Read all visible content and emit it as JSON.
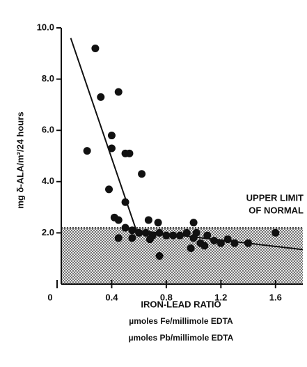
{
  "chart_data": {
    "type": "scatter",
    "y_label": "mg δ-ALA/m²/24 hours",
    "x_label": [
      "IRON-LEAD RATIO",
      "µmoles Fe/millimole EDTA",
      "µmoles Pb/millimole EDTA"
    ],
    "annotation": [
      "UPPER LIMIT",
      "OF NORMAL"
    ],
    "normal_limit": 2.2,
    "color": "#111111",
    "xlim": [
      0,
      1.8
    ],
    "ylim": [
      0,
      10
    ],
    "xticks": [
      0,
      0.4,
      0.8,
      1.2,
      1.6
    ],
    "yticks": [
      {
        "value": 2,
        "label": "2.0"
      },
      {
        "value": 4,
        "label": "4.0"
      },
      {
        "value": 6,
        "label": "6.0"
      },
      {
        "value": 8,
        "label": "8.0"
      },
      {
        "value": 10,
        "label": "10.0"
      }
    ],
    "trend": {
      "x": [
        0.1,
        0.58,
        1.8
      ],
      "y": [
        9.6,
        2.1,
        1.35
      ]
    },
    "x": [
      0.28,
      0.32,
      0.45,
      0.22,
      0.4,
      0.4,
      0.5,
      0.53,
      0.62,
      0.38,
      0.5,
      0.42,
      0.45,
      0.5,
      0.55,
      0.67,
      0.74,
      0.6,
      0.65,
      0.7,
      0.75,
      0.8,
      0.85,
      0.9,
      0.95,
      1.0,
      1.0,
      1.05,
      1.02,
      1.1,
      1.15,
      1.2,
      0.45,
      0.55,
      0.68,
      0.75,
      1.6,
      1.4,
      1.3,
      0.98,
      1.08,
      1.25
    ],
    "values": [
      9.2,
      7.3,
      7.5,
      5.2,
      5.8,
      5.3,
      5.1,
      5.1,
      4.3,
      3.7,
      3.2,
      2.6,
      2.5,
      2.2,
      2.1,
      2.5,
      2.4,
      2.0,
      2.0,
      1.9,
      2.0,
      1.9,
      1.9,
      1.9,
      2.0,
      2.4,
      1.8,
      1.6,
      2.0,
      1.9,
      1.7,
      1.6,
      1.8,
      1.8,
      1.75,
      1.1,
      2.0,
      1.6,
      1.6,
      1.4,
      1.5,
      1.75
    ]
  }
}
